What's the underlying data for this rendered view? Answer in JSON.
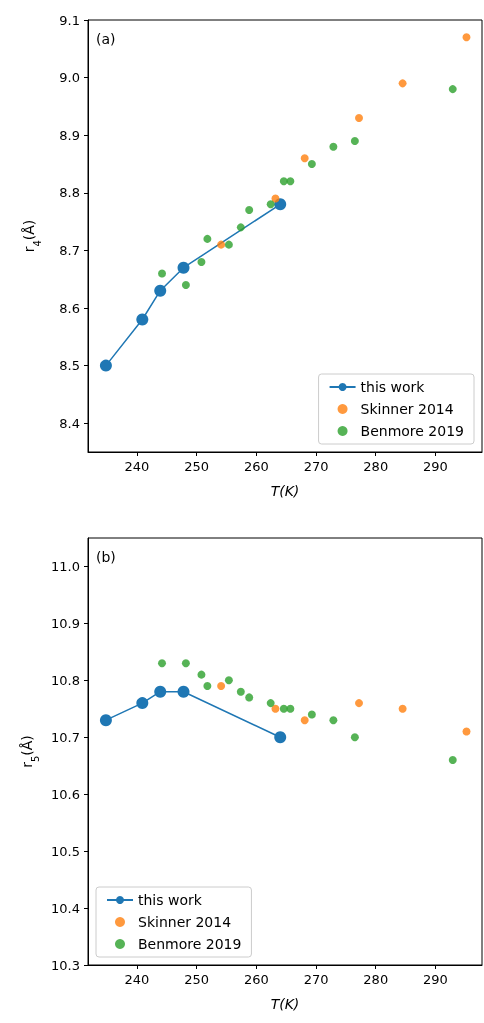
{
  "chart_data": [
    {
      "type": "scatter",
      "annotations": [
        "(a)"
      ],
      "xlabel": "T(K)",
      "ylabel": "r$_{4}$(Å)",
      "xlim": [
        231.8,
        297.8
      ],
      "xticks": [
        240,
        250,
        260,
        270,
        280,
        290
      ],
      "ylim": [
        8.35,
        9.1
      ],
      "yticks": [
        8.4,
        8.5,
        8.6,
        8.7,
        8.8,
        8.9,
        {
          "value": 9,
          "label": "9.0"
        },
        9.1
      ],
      "legend": "bottom right",
      "grid": false,
      "series": [
        {
          "name": "this work",
          "type": "line",
          "marker": "circle",
          "color": "#1f77b4",
          "x": [
            234.8,
            240.9,
            243.9,
            247.8,
            264.0
          ],
          "values": [
            8.5,
            8.58,
            8.63,
            8.67,
            8.78
          ]
        },
        {
          "name": "Skinner 2014",
          "type": "scatter",
          "color": "#ff7f0e",
          "x": [
            254.1,
            263.2,
            268.1,
            277.2,
            284.5,
            295.2
          ],
          "values": [
            8.71,
            8.79,
            8.86,
            8.93,
            8.99,
            9.07
          ]
        },
        {
          "name": "Benmore 2019",
          "type": "scatter",
          "color": "#2ca02c",
          "x": [
            244.2,
            248.2,
            250.8,
            251.8,
            255.4,
            257.4,
            258.8,
            262.4,
            264.6,
            265.7,
            269.3,
            272.9,
            276.5,
            292.9
          ],
          "values": [
            8.66,
            8.64,
            8.68,
            8.72,
            8.71,
            8.74,
            8.77,
            8.78,
            8.82,
            8.82,
            8.85,
            8.88,
            8.89,
            8.98
          ]
        }
      ]
    },
    {
      "type": "scatter",
      "annotations": [
        "(b)"
      ],
      "xlabel": "T(K)",
      "ylabel": "r$_{5}$(Å)",
      "xlim": [
        231.8,
        297.8
      ],
      "xticks": [
        240,
        250,
        260,
        270,
        280,
        290
      ],
      "ylim": [
        10.3,
        11.05
      ],
      "yticks": [
        10.3,
        10.4,
        10.5,
        10.6,
        10.7,
        10.8,
        10.9,
        {
          "value": 11,
          "label": "11.0"
        }
      ],
      "legend": "bottom left",
      "grid": false,
      "series": [
        {
          "name": "this work",
          "type": "line",
          "marker": "circle",
          "color": "#1f77b4",
          "x": [
            234.8,
            240.9,
            243.9,
            247.8,
            264.0
          ],
          "values": [
            10.73,
            10.76,
            10.78,
            10.78,
            10.7
          ]
        },
        {
          "name": "Skinner 2014",
          "type": "scatter",
          "color": "#ff7f0e",
          "x": [
            254.1,
            263.2,
            268.1,
            277.2,
            284.5,
            295.2
          ],
          "values": [
            10.79,
            10.75,
            10.73,
            10.76,
            10.75,
            10.71
          ]
        },
        {
          "name": "Benmore 2019",
          "type": "scatter",
          "color": "#2ca02c",
          "x": [
            244.2,
            248.2,
            250.8,
            251.8,
            255.4,
            257.4,
            258.8,
            262.4,
            264.6,
            265.7,
            269.3,
            272.9,
            276.5,
            292.9
          ],
          "values": [
            10.83,
            10.83,
            10.81,
            10.79,
            10.8,
            10.78,
            10.77,
            10.76,
            10.75,
            10.75,
            10.74,
            10.73,
            10.7,
            10.66
          ]
        }
      ]
    }
  ]
}
